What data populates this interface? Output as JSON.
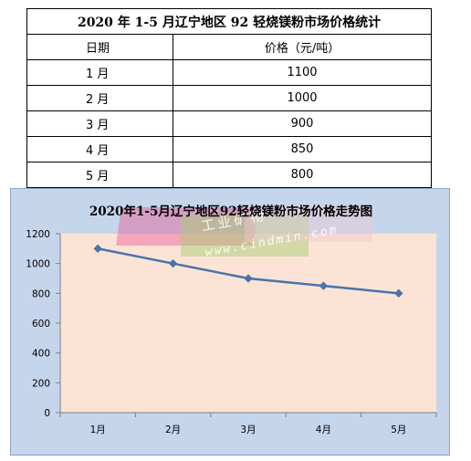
{
  "table": {
    "title": "2020 年 1-5 月辽宁地区 92 轻烧镁粉市场价格统计",
    "headers": [
      "日期",
      "价格（元/吨）"
    ],
    "rows": [
      {
        "date": "1 月",
        "price": "1100"
      },
      {
        "date": "2 月",
        "price": "1000"
      },
      {
        "date": "3 月",
        "price": "900"
      },
      {
        "date": "4 月",
        "price": "850"
      },
      {
        "date": "5 月",
        "price": "800"
      }
    ]
  },
  "watermark": {
    "text_cn": "工业矿物",
    "url": "www.cindmin.com"
  },
  "colors": {
    "frame_bg": "#c5d5ec",
    "plot_bg": "#fbe4d5",
    "line": "#4a73ab",
    "marker": "#4a73ab"
  },
  "chart_data": {
    "type": "line",
    "title": "2020年1-5月辽宁地区92轻烧镁粉市场价格走势图",
    "categories": [
      "1月",
      "2月",
      "3月",
      "4月",
      "5月"
    ],
    "series": [
      {
        "values": [
          1100,
          1000,
          900,
          850,
          800
        ]
      }
    ],
    "ylim": [
      0,
      1200
    ],
    "yticks": [
      0,
      200,
      400,
      600,
      800,
      1000,
      1200
    ],
    "grid": false,
    "legend": "none"
  }
}
